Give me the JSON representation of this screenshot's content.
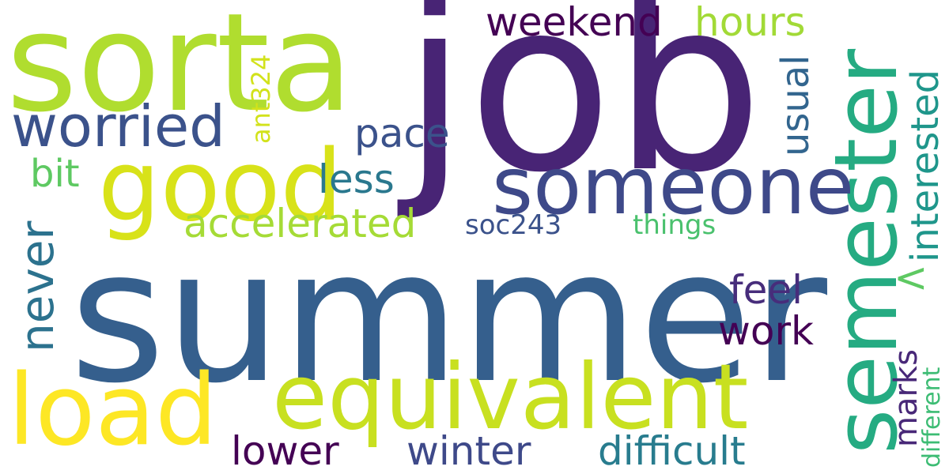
{
  "words": [
    {
      "text": "summer",
      "color": "#355f8d"
    },
    {
      "text": "job",
      "color": "#482475"
    },
    {
      "text": "sorta",
      "color": "#b0dd2f"
    },
    {
      "text": "semester",
      "color": "#25ab82"
    },
    {
      "text": "good",
      "color": "#d8e219"
    },
    {
      "text": "equivalent",
      "color": "#c8e020"
    },
    {
      "text": "load",
      "color": "#fde725"
    },
    {
      "text": "someone",
      "color": "#3e4989"
    },
    {
      "text": "worried",
      "color": "#3b528b"
    },
    {
      "text": "weekend",
      "color": "#440154"
    },
    {
      "text": "hours",
      "color": "#a2da37"
    },
    {
      "text": "accelerated",
      "color": "#a5db36"
    },
    {
      "text": "never",
      "color": "#2c728e"
    },
    {
      "text": "pace",
      "color": "#3b528b"
    },
    {
      "text": "less",
      "color": "#2a788e"
    },
    {
      "text": "bit",
      "color": "#5ec962"
    },
    {
      "text": "usual",
      "color": "#32658e"
    },
    {
      "text": "interested",
      "color": "#1f968b"
    },
    {
      "text": "feel",
      "color": "#472d7b"
    },
    {
      "text": "work",
      "color": "#440154"
    },
    {
      "text": "marks",
      "color": "#482878"
    },
    {
      "text": "lower",
      "color": "#440154"
    },
    {
      "text": "winter",
      "color": "#3e4989"
    },
    {
      "text": "difficult",
      "color": "#287c8e"
    },
    {
      "text": "ant324",
      "color": "#d2e21b"
    },
    {
      "text": "soc243",
      "color": "#3b528b"
    },
    {
      "text": "things",
      "color": "#4ac16d"
    },
    {
      "text": "different",
      "color": "#3dbc74"
    },
    {
      "text": "<",
      "color": "#5ec962"
    }
  ]
}
